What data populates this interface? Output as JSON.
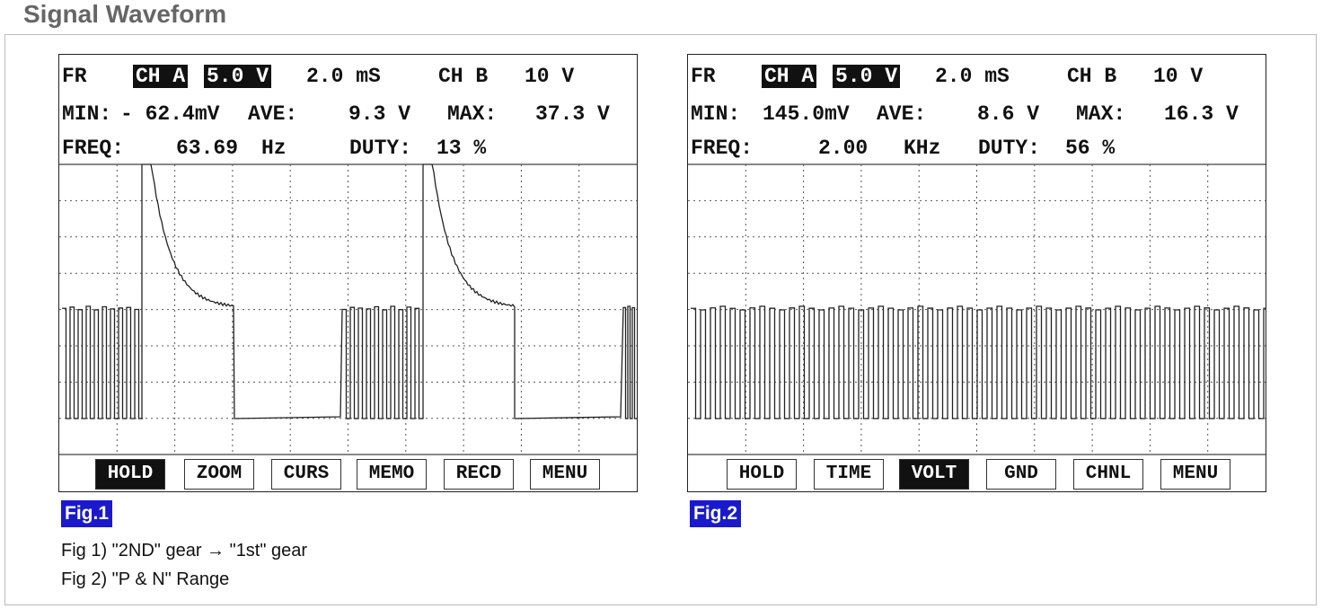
{
  "title": "Signal Waveform",
  "figures": [
    {
      "header": [
        [
          "FR",
          "CH A",
          "5.0 V",
          "2.0 mS",
          "CH B",
          "10 V"
        ],
        [
          "MIN:",
          "- 62.4mV",
          "AVE:",
          "9.3 V",
          "MAX:",
          "37.3 V"
        ],
        [
          "FREQ:",
          "63.69",
          "Hz",
          "DUTY:",
          "13 %"
        ]
      ],
      "buttons": [
        "HOLD",
        "ZOOM",
        "CURS",
        "MEMO",
        "RECD",
        "MENU"
      ],
      "label": "Fig.1"
    },
    {
      "header": [
        [
          "FR",
          "CH A",
          "5.0 V",
          "2.0 mS",
          "CH B",
          "10 V"
        ],
        [
          "MIN:",
          "145.0mV",
          "AVE:",
          "8.6 V",
          "MAX:",
          "16.3 V"
        ],
        [
          "FREQ:",
          "2.00",
          "KHz",
          "DUTY:",
          "56 %"
        ]
      ],
      "buttons": [
        "HOLD",
        "TIME",
        "VOLT",
        "GND",
        "CHNL",
        "MENU"
      ],
      "label": "Fig.2"
    }
  ],
  "captions": [
    "Fig 1) \"2ND\" gear → \"1st\" gear",
    "Fig 2) \"P & N\" Range"
  ]
}
